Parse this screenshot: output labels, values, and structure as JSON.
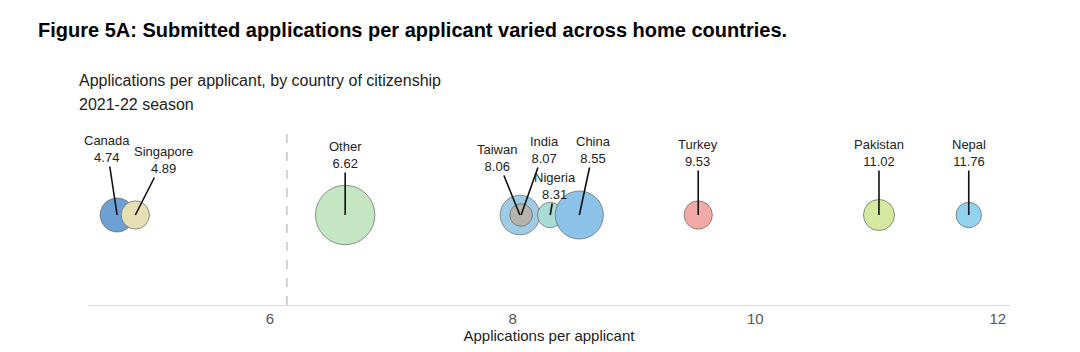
{
  "chart_data": {
    "type": "bubble",
    "title": "Figure 5A: Submitted applications per applicant varied across home countries.",
    "subtitle": [
      "Applications per applicant, by country of citizenship",
      "2021-22 season"
    ],
    "xlabel": "Applications per applicant",
    "categories": [
      "Canada",
      "Singapore",
      "Other",
      "Taiwan",
      "India",
      "Nigeria",
      "China",
      "Turkey",
      "Pakistan",
      "Nepal"
    ],
    "values": [
      4.74,
      4.89,
      6.62,
      8.06,
      8.07,
      8.31,
      8.55,
      9.53,
      11.02,
      11.76
    ],
    "sizes": [
      144,
      100,
      441,
      196,
      64,
      81,
      289,
      100,
      121,
      81
    ],
    "colors": [
      "#6c9fd2",
      "#e6dfb4",
      "#c4e6c2",
      "#9fcbe4",
      "#b4b4ac",
      "#aadcd6",
      "#8cc2e8",
      "#f3aaa7",
      "#d6e8a0",
      "#92d2ee"
    ],
    "xlim": [
      4.5,
      12.1
    ],
    "xticks": [
      6,
      8,
      10,
      12
    ],
    "divider_x": 6.14,
    "grid": false,
    "data_labels": true,
    "tick_labels": "x"
  }
}
